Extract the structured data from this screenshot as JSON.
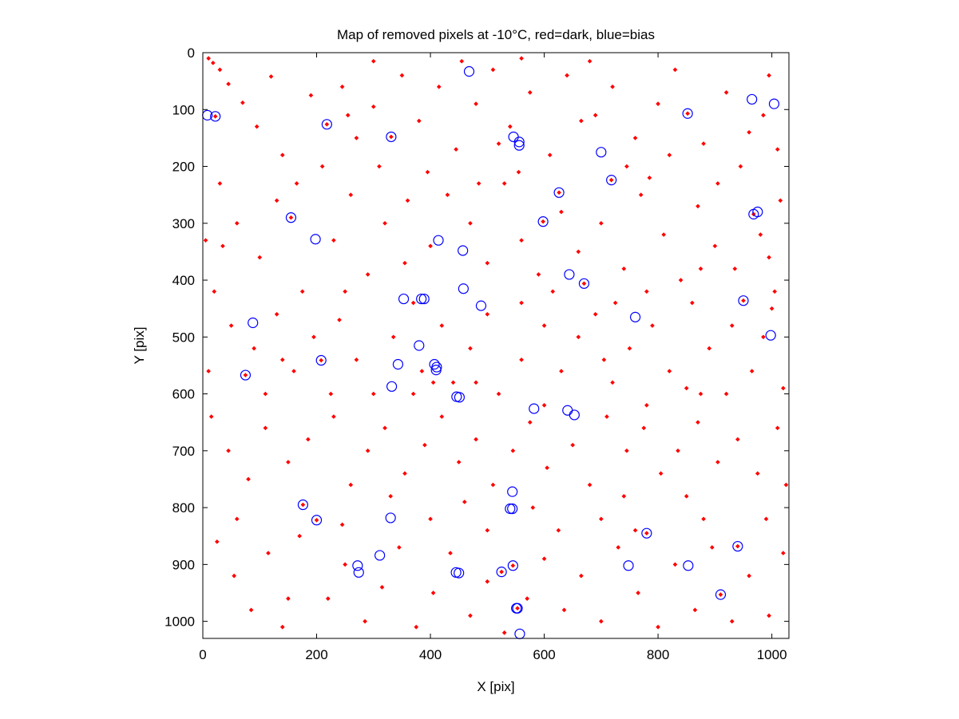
{
  "chart_data": {
    "type": "scatter",
    "title": "Map of removed pixels at -10°C, red=dark, blue=bias",
    "xlabel": "X [pix]",
    "ylabel": "Y [pix]",
    "xlim": [
      0,
      1030
    ],
    "ylim": [
      0,
      1030
    ],
    "y_inverted": true,
    "x_ticks": [
      0,
      200,
      400,
      600,
      800,
      1000
    ],
    "y_ticks": [
      0,
      100,
      200,
      300,
      400,
      500,
      600,
      700,
      800,
      900,
      1000
    ],
    "grid": false,
    "legend": "none",
    "series": [
      {
        "color": "#ff0000",
        "marker": "dot",
        "points": [
          [
            22,
            112
          ],
          [
            218,
            126
          ],
          [
            331,
            148
          ],
          [
            155,
            290
          ],
          [
            598,
            297
          ],
          [
            626,
            246
          ],
          [
            718,
            224
          ],
          [
            670,
            406
          ],
          [
            950,
            436
          ],
          [
            968,
            284
          ],
          [
            208,
            541
          ],
          [
            75,
            567
          ],
          [
            176,
            795
          ],
          [
            200,
            822
          ],
          [
            525,
            913
          ],
          [
            545,
            902
          ],
          [
            553,
            977
          ],
          [
            780,
            845
          ],
          [
            910,
            953
          ],
          [
            940,
            868
          ],
          [
            852,
            107
          ],
          [
            18,
            18
          ],
          [
            45,
            55
          ],
          [
            70,
            88
          ],
          [
            95,
            130
          ],
          [
            120,
            42
          ],
          [
            140,
            180
          ],
          [
            165,
            230
          ],
          [
            190,
            75
          ],
          [
            245,
            60
          ],
          [
            270,
            150
          ],
          [
            300,
            95
          ],
          [
            350,
            40
          ],
          [
            380,
            120
          ],
          [
            415,
            60
          ],
          [
            445,
            170
          ],
          [
            480,
            90
          ],
          [
            510,
            30
          ],
          [
            540,
            130
          ],
          [
            575,
            70
          ],
          [
            610,
            180
          ],
          [
            640,
            40
          ],
          [
            690,
            110
          ],
          [
            720,
            60
          ],
          [
            760,
            150
          ],
          [
            800,
            90
          ],
          [
            830,
            30
          ],
          [
            880,
            160
          ],
          [
            920,
            70
          ],
          [
            960,
            140
          ],
          [
            995,
            40
          ],
          [
            1010,
            170
          ],
          [
            30,
            230
          ],
          [
            60,
            300
          ],
          [
            100,
            360
          ],
          [
            130,
            260
          ],
          [
            175,
            420
          ],
          [
            230,
            330
          ],
          [
            260,
            250
          ],
          [
            290,
            390
          ],
          [
            320,
            300
          ],
          [
            360,
            260
          ],
          [
            400,
            340
          ],
          [
            430,
            250
          ],
          [
            470,
            300
          ],
          [
            500,
            370
          ],
          [
            530,
            230
          ],
          [
            560,
            330
          ],
          [
            590,
            390
          ],
          [
            630,
            280
          ],
          [
            660,
            350
          ],
          [
            700,
            300
          ],
          [
            740,
            380
          ],
          [
            770,
            250
          ],
          [
            810,
            320
          ],
          [
            840,
            400
          ],
          [
            870,
            270
          ],
          [
            900,
            340
          ],
          [
            935,
            380
          ],
          [
            980,
            320
          ],
          [
            1015,
            260
          ],
          [
            20,
            420
          ],
          [
            50,
            480
          ],
          [
            90,
            520
          ],
          [
            130,
            460
          ],
          [
            160,
            560
          ],
          [
            240,
            470
          ],
          [
            270,
            540
          ],
          [
            300,
            600
          ],
          [
            335,
            500
          ],
          [
            370,
            440
          ],
          [
            420,
            480
          ],
          [
            440,
            580
          ],
          [
            470,
            520
          ],
          [
            500,
            460
          ],
          [
            520,
            600
          ],
          [
            560,
            540
          ],
          [
            600,
            480
          ],
          [
            630,
            560
          ],
          [
            660,
            500
          ],
          [
            690,
            460
          ],
          [
            720,
            580
          ],
          [
            750,
            520
          ],
          [
            790,
            480
          ],
          [
            820,
            560
          ],
          [
            860,
            440
          ],
          [
            890,
            520
          ],
          [
            930,
            480
          ],
          [
            965,
            560
          ],
          [
            1000,
            450
          ],
          [
            1020,
            590
          ],
          [
            15,
            640
          ],
          [
            45,
            700
          ],
          [
            80,
            750
          ],
          [
            110,
            660
          ],
          [
            150,
            720
          ],
          [
            185,
            680
          ],
          [
            230,
            640
          ],
          [
            260,
            760
          ],
          [
            290,
            700
          ],
          [
            320,
            660
          ],
          [
            355,
            740
          ],
          [
            390,
            690
          ],
          [
            420,
            640
          ],
          [
            450,
            720
          ],
          [
            480,
            680
          ],
          [
            510,
            760
          ],
          [
            545,
            700
          ],
          [
            575,
            650
          ],
          [
            605,
            730
          ],
          [
            650,
            690
          ],
          [
            680,
            760
          ],
          [
            710,
            640
          ],
          [
            745,
            700
          ],
          [
            775,
            660
          ],
          [
            805,
            740
          ],
          [
            835,
            700
          ],
          [
            870,
            650
          ],
          [
            905,
            720
          ],
          [
            940,
            680
          ],
          [
            975,
            740
          ],
          [
            1010,
            660
          ],
          [
            25,
            860
          ],
          [
            55,
            920
          ],
          [
            85,
            980
          ],
          [
            115,
            880
          ],
          [
            140,
            1010
          ],
          [
            220,
            960
          ],
          [
            250,
            900
          ],
          [
            285,
            1000
          ],
          [
            315,
            940
          ],
          [
            345,
            870
          ],
          [
            375,
            1010
          ],
          [
            405,
            950
          ],
          [
            435,
            880
          ],
          [
            470,
            990
          ],
          [
            500,
            930
          ],
          [
            530,
            1020
          ],
          [
            570,
            960
          ],
          [
            600,
            890
          ],
          [
            635,
            980
          ],
          [
            665,
            920
          ],
          [
            700,
            1000
          ],
          [
            730,
            870
          ],
          [
            765,
            950
          ],
          [
            800,
            1010
          ],
          [
            830,
            900
          ],
          [
            865,
            980
          ],
          [
            895,
            870
          ],
          [
            930,
            1000
          ],
          [
            960,
            920
          ],
          [
            995,
            990
          ],
          [
            1020,
            880
          ],
          [
            10,
            560
          ],
          [
            35,
            340
          ],
          [
            210,
            200
          ],
          [
            255,
            110
          ],
          [
            310,
            200
          ],
          [
            395,
            210
          ],
          [
            455,
            15
          ],
          [
            485,
            230
          ],
          [
            520,
            160
          ],
          [
            555,
            210
          ],
          [
            665,
            120
          ],
          [
            745,
            200
          ],
          [
            785,
            220
          ],
          [
            820,
            180
          ],
          [
            905,
            230
          ],
          [
            945,
            200
          ],
          [
            985,
            110
          ],
          [
            250,
            420
          ],
          [
            355,
            370
          ],
          [
            385,
            560
          ],
          [
            480,
            580
          ],
          [
            600,
            620
          ],
          [
            615,
            420
          ],
          [
            780,
            620
          ],
          [
            850,
            590
          ],
          [
            875,
            600
          ],
          [
            985,
            500
          ],
          [
            1005,
            420
          ],
          [
            110,
            600
          ],
          [
            60,
            820
          ],
          [
            170,
            850
          ],
          [
            245,
            830
          ],
          [
            330,
            780
          ],
          [
            400,
            820
          ],
          [
            460,
            790
          ],
          [
            500,
            840
          ],
          [
            580,
            800
          ],
          [
            625,
            840
          ],
          [
            700,
            820
          ],
          [
            740,
            780
          ],
          [
            760,
            840
          ],
          [
            850,
            780
          ],
          [
            880,
            820
          ],
          [
            990,
            820
          ],
          [
            140,
            540
          ],
          [
            195,
            500
          ],
          [
            225,
            600
          ],
          [
            370,
            600
          ],
          [
            405,
            580
          ],
          [
            560,
            440
          ],
          [
            705,
            540
          ],
          [
            725,
            440
          ],
          [
            875,
            380
          ],
          [
            995,
            360
          ],
          [
            10,
            10
          ],
          [
            5,
            330
          ],
          [
            150,
            960
          ],
          [
            560,
            10
          ],
          [
            680,
            15
          ],
          [
            1025,
            760
          ],
          [
            30,
            30
          ],
          [
            300,
            15
          ],
          [
            780,
            420
          ],
          [
            920,
            600
          ]
        ]
      },
      {
        "color": "#0000ff",
        "marker": "circle",
        "points": [
          [
            468,
            33
          ],
          [
            8,
            110
          ],
          [
            22,
            112
          ],
          [
            218,
            126
          ],
          [
            331,
            148
          ],
          [
            546,
            148
          ],
          [
            556,
            157
          ],
          [
            556,
            163
          ],
          [
            852,
            107
          ],
          [
            965,
            82
          ],
          [
            1004,
            90
          ],
          [
            700,
            175
          ],
          [
            718,
            224
          ],
          [
            626,
            246
          ],
          [
            155,
            290
          ],
          [
            598,
            297
          ],
          [
            968,
            284
          ],
          [
            975,
            280
          ],
          [
            198,
            328
          ],
          [
            414,
            330
          ],
          [
            457,
            348
          ],
          [
            644,
            390
          ],
          [
            670,
            406
          ],
          [
            458,
            415
          ],
          [
            353,
            433
          ],
          [
            384,
            433
          ],
          [
            389,
            433
          ],
          [
            489,
            445
          ],
          [
            950,
            436
          ],
          [
            760,
            465
          ],
          [
            88,
            475
          ],
          [
            998,
            497
          ],
          [
            380,
            515
          ],
          [
            343,
            548
          ],
          [
            407,
            548
          ],
          [
            411,
            553
          ],
          [
            410,
            558
          ],
          [
            208,
            541
          ],
          [
            75,
            567
          ],
          [
            332,
            587
          ],
          [
            446,
            605
          ],
          [
            451,
            606
          ],
          [
            582,
            626
          ],
          [
            641,
            629
          ],
          [
            653,
            637
          ],
          [
            544,
            772
          ],
          [
            176,
            795
          ],
          [
            544,
            802
          ],
          [
            540,
            802
          ],
          [
            200,
            822
          ],
          [
            330,
            818
          ],
          [
            311,
            884
          ],
          [
            272,
            902
          ],
          [
            274,
            914
          ],
          [
            445,
            914
          ],
          [
            450,
            915
          ],
          [
            525,
            913
          ],
          [
            545,
            902
          ],
          [
            553,
            977
          ],
          [
            551,
            977
          ],
          [
            557,
            1022
          ],
          [
            748,
            902
          ],
          [
            853,
            902
          ],
          [
            780,
            845
          ],
          [
            910,
            953
          ],
          [
            940,
            868
          ]
        ]
      }
    ]
  }
}
